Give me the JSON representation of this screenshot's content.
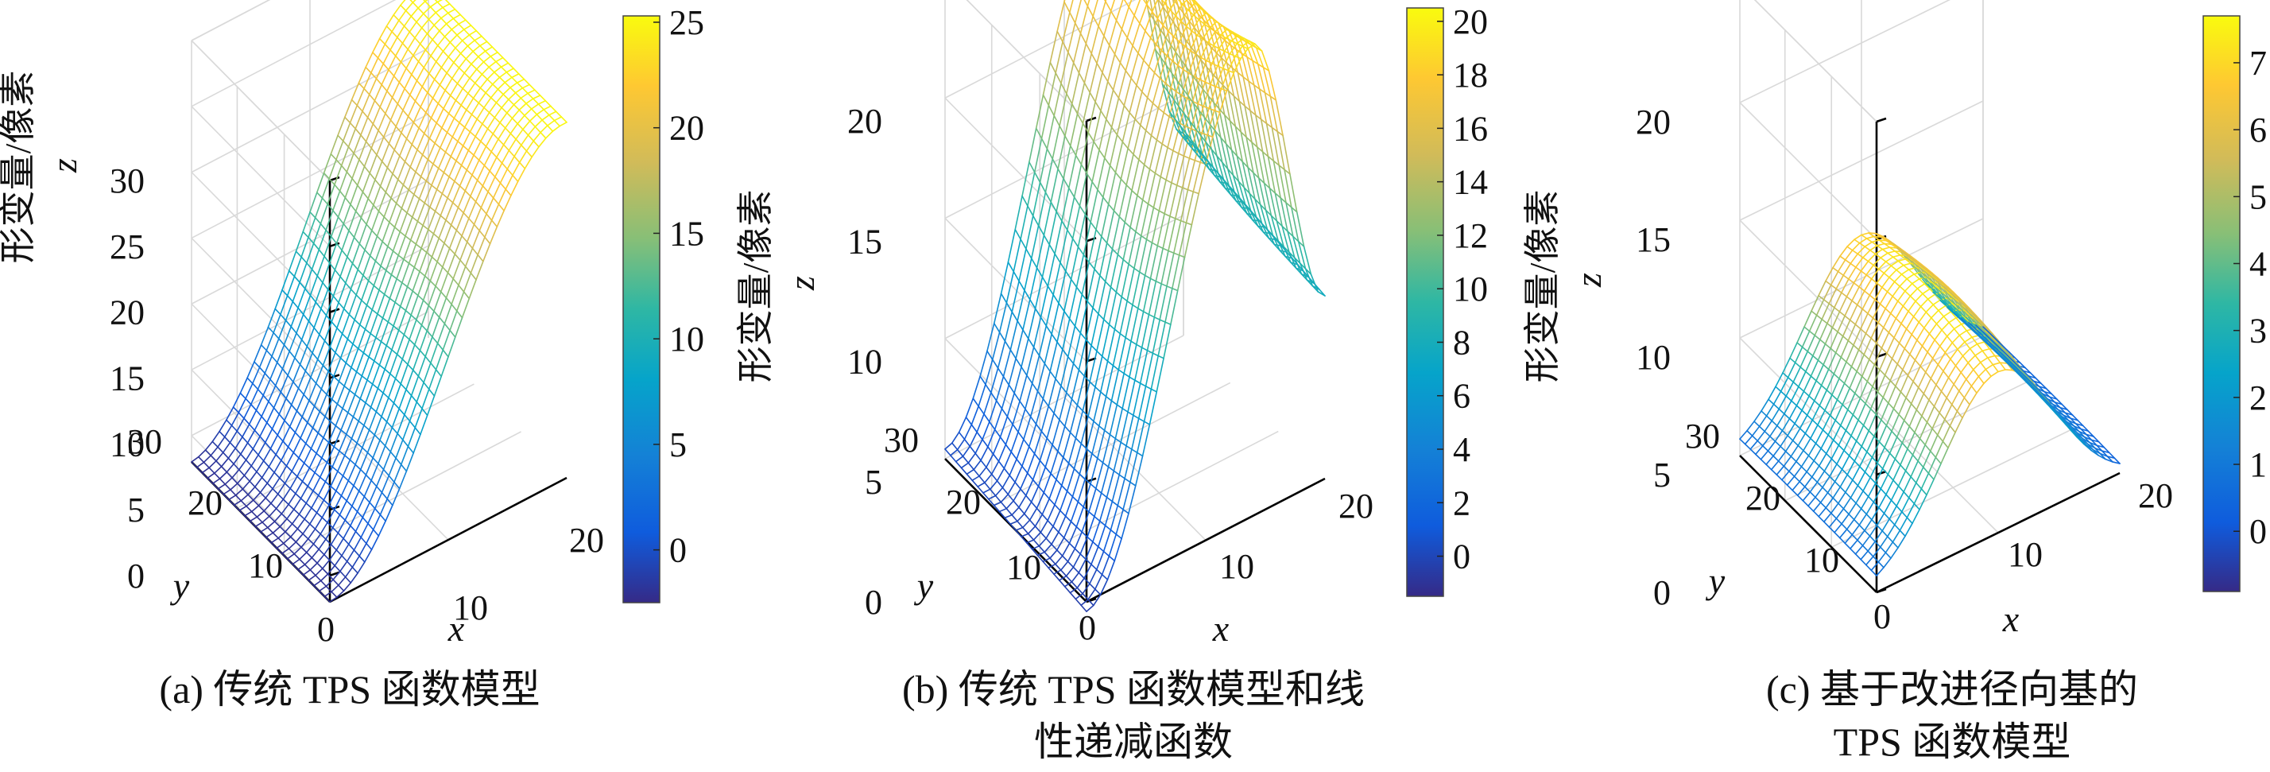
{
  "chart_data": [
    {
      "type": "surface",
      "panel": "a",
      "caption": [
        "(a) 传统 TPS 函数模型"
      ],
      "zlabel": "形变量/像素",
      "xlabel": "x",
      "ylabel": "y",
      "zaxis_symbol": "z",
      "xlim": [
        0,
        20
      ],
      "ylim": [
        0,
        30
      ],
      "zlim": [
        -2,
        30
      ],
      "xticks": [
        "10",
        "20"
      ],
      "yticks": [
        "0",
        "10",
        "20",
        "30"
      ],
      "zticks": [
        "0",
        "5",
        "10",
        "15",
        "20",
        "25",
        "30"
      ],
      "colorbar": {
        "min": -2.5,
        "max": 25.3,
        "ticks": [
          "0",
          "5",
          "10",
          "15",
          "20",
          "25"
        ]
      },
      "surface": {
        "shape": "ramp",
        "z_min": -2,
        "z_max": 25,
        "description_values": {
          "z_at_x0": -2,
          "z_at_x20": 25
        }
      }
    },
    {
      "type": "surface",
      "panel": "b",
      "caption": [
        "(b) 传统 TPS 函数模型和线",
        "性递减函数"
      ],
      "zlabel": "形变量/像素",
      "xlabel": "x",
      "ylabel": "y",
      "zaxis_symbol": "z",
      "xlim": [
        0,
        20
      ],
      "ylim": [
        0,
        30
      ],
      "zlim": [
        0,
        20
      ],
      "xticks": [
        "0",
        "10",
        "20"
      ],
      "yticks": [
        "10",
        "20",
        "30"
      ],
      "zticks": [
        "0",
        "5",
        "10",
        "15",
        "20"
      ],
      "colorbar": {
        "min": -1.5,
        "max": 20.5,
        "ticks": [
          "0",
          "2",
          "4",
          "6",
          "8",
          "10",
          "12",
          "14",
          "16",
          "18",
          "20"
        ]
      },
      "surface": {
        "shape": "peak",
        "z_min": 0,
        "z_max": 20,
        "peak_x": 14,
        "z_at_x20": 8
      }
    },
    {
      "type": "surface",
      "panel": "c",
      "caption": [
        "(c) 基于改进径向基的",
        "TPS 函数模型"
      ],
      "zlabel": "形变量/像素",
      "xlabel": "x",
      "ylabel": "y",
      "zaxis_symbol": "z",
      "xlim": [
        0,
        20
      ],
      "ylim": [
        0,
        30
      ],
      "zlim": [
        0,
        20
      ],
      "xticks": [
        "0",
        "10",
        "20"
      ],
      "yticks": [
        "10",
        "20",
        "30"
      ],
      "zticks": [
        "0",
        "5",
        "10",
        "15",
        "20"
      ],
      "colorbar": {
        "min": -0.9,
        "max": 7.7,
        "ticks": [
          "0",
          "1",
          "2",
          "3",
          "4",
          "5",
          "6",
          "7"
        ]
      },
      "surface": {
        "shape": "bump",
        "z_min": 0,
        "z_max": 7.6,
        "peak_x": 10
      }
    }
  ]
}
